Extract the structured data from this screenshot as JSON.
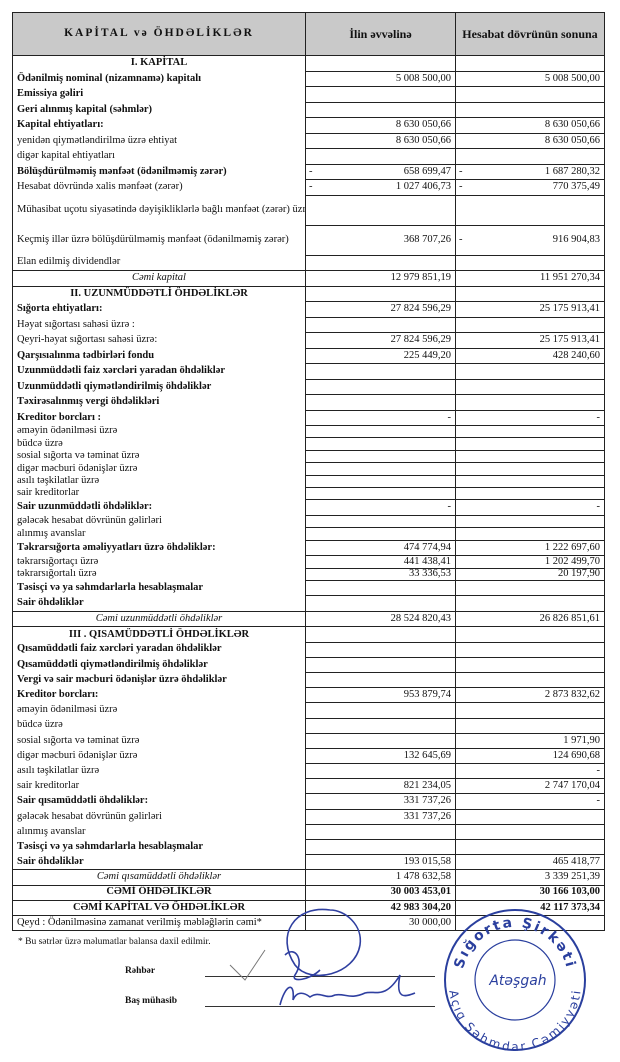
{
  "header": {
    "col_item": "KAPİTAL və ÖHDƏLİKLƏR",
    "col_start": "İlin əvvəlinə",
    "col_end": "Hesabat dövrünün sonuna"
  },
  "sections": [
    {
      "rows": [
        {
          "kind": "section",
          "label": "I. KAPİTAL",
          "v": [
            "",
            ""
          ]
        },
        {
          "kind": "main",
          "label": "Ödənilmiş nominal (nizamnamə) kapitalı",
          "v": [
            "5 008 500,00",
            "5 008 500,00"
          ]
        },
        {
          "kind": "main",
          "label": "Emissiya gəliri",
          "v": [
            "",
            ""
          ]
        },
        {
          "kind": "main",
          "label": "Geri alınmış kapital (səhmlər)",
          "v": [
            "",
            ""
          ]
        },
        {
          "kind": "main",
          "label": "Kapital ehtiyatları:",
          "v": [
            "8 630 050,66",
            "8 630 050,66"
          ]
        },
        {
          "kind": "sub",
          "label": "yenidən qiymətləndirilmə üzrə ehtiyat",
          "v": [
            "8 630 050,66",
            "8 630 050,66"
          ]
        },
        {
          "kind": "sub",
          "label": "digər kapital ehtiyatları",
          "v": [
            "",
            ""
          ]
        },
        {
          "kind": "main",
          "label": "Bölüşdürülməmiş mənfəət (ödənilməmiş zərər)",
          "v": [
            "- 658 699,47",
            "- 1 687 280,32"
          ]
        },
        {
          "kind": "sub",
          "label": "Hesabat dövründə xalis mənfəət (zərər)",
          "v": [
            "- 1 027 406,73",
            "- 770 375,49"
          ]
        },
        {
          "kind": "sub tall",
          "label": "Mühasibat uçotu siyasətində dəyişikliklərlə bağlı mənfəət (zərər) üzrə düzəlişlər",
          "v": [
            "",
            ""
          ]
        },
        {
          "kind": "sub tall",
          "label": "Keçmiş illər üzrə bölüşdürülməmiş mənfəət (ödənilməmiş zərər)",
          "v": [
            "368 707,26",
            "- 916 904,83"
          ]
        },
        {
          "kind": "sub",
          "label": "Elan edilmiş dividendlər",
          "v": [
            "",
            ""
          ]
        },
        {
          "kind": "total",
          "label": "Cəmi kapital",
          "v": [
            "12 979 851,19",
            "11 951 270,34"
          ]
        }
      ]
    },
    {
      "rows": [
        {
          "kind": "section",
          "label": "II. UZUNMÜDDƏTLİ ÖHDƏLİKLƏR",
          "v": [
            "",
            ""
          ]
        },
        {
          "kind": "main",
          "label": "Sığorta ehtiyatları:",
          "v": [
            "27 824 596,29",
            "25 175 913,41"
          ]
        },
        {
          "kind": "sub",
          "label": "Həyat sığortası sahəsi üzrə :",
          "v": [
            "",
            ""
          ]
        },
        {
          "kind": "sub",
          "label": "Qeyri-həyat sığortası sahəsi üzrə:",
          "v": [
            "27 824 596,29",
            "25 175 913,41"
          ]
        },
        {
          "kind": "main",
          "label": "Qarşısıalınma tədbirləri fondu",
          "v": [
            "225 449,20",
            "428 240,60"
          ]
        },
        {
          "kind": "main",
          "label": "Uzunmüddətli faiz xərcləri yaradan öhdəliklər",
          "v": [
            "",
            ""
          ]
        },
        {
          "kind": "main",
          "label": "Uzunmüddətli qiymətləndirilmiş öhdəliklər",
          "v": [
            "",
            ""
          ]
        },
        {
          "kind": "main",
          "label": "Təxirəsalınmış vergi öhdəlikləri",
          "v": [
            "",
            ""
          ]
        },
        {
          "kind": "main",
          "label": "Kreditor borcları :",
          "v": [
            "-",
            "-"
          ]
        },
        {
          "kind": "sub2",
          "label": "əməyin ödənilməsi üzrə",
          "v": [
            "",
            ""
          ]
        },
        {
          "kind": "sub2",
          "label": "büdcə üzrə",
          "v": [
            "",
            ""
          ]
        },
        {
          "kind": "sub2",
          "label": "sosial sığorta və təminat üzrə",
          "v": [
            "",
            ""
          ]
        },
        {
          "kind": "sub2",
          "label": "digər məcburi ödənişlər üzrə",
          "v": [
            "",
            ""
          ]
        },
        {
          "kind": "sub2",
          "label": "asılı təşkilatlar üzrə",
          "v": [
            "",
            ""
          ]
        },
        {
          "kind": "sub2",
          "label": "sair kreditorlar",
          "v": [
            "",
            ""
          ]
        },
        {
          "kind": "main",
          "label": "Sair uzunmüddətli öhdəliklər:",
          "v": [
            "-",
            "-"
          ]
        },
        {
          "kind": "sub2",
          "label": "gələcək hesabat dövrünün gəlirləri",
          "v": [
            "",
            ""
          ]
        },
        {
          "kind": "sub2",
          "label": "alınmış avanslar",
          "v": [
            "",
            ""
          ]
        },
        {
          "kind": "main",
          "label": "Təkrarsığorta əməliyyatları üzrə öhdəliklər:",
          "v": [
            "474 774,94",
            "1 222 697,60"
          ]
        },
        {
          "kind": "sub2",
          "label": "təkrarsığortaçı üzrə",
          "v": [
            "441 438,41",
            "1 202 499,70"
          ]
        },
        {
          "kind": "sub2",
          "label": "təkrarsığortalı üzrə",
          "v": [
            "33 336,53",
            "20 197,90"
          ]
        },
        {
          "kind": "main",
          "label": "Təsisçi və ya səhmdarlarla hesablaşmalar",
          "v": [
            "",
            ""
          ]
        },
        {
          "kind": "main",
          "label": "Sair öhdəliklər",
          "v": [
            "",
            ""
          ]
        },
        {
          "kind": "total",
          "label": "Cəmi uzunmüddətli öhdəliklər",
          "v": [
            "28 524 820,43",
            "26 826 851,61"
          ]
        }
      ]
    },
    {
      "rows": [
        {
          "kind": "section",
          "label": "III . QISAMÜDDƏTLİ ÖHDƏLİKLƏR",
          "v": [
            "",
            ""
          ]
        },
        {
          "kind": "main",
          "label": "Qısamüddətli faiz xərcləri yaradan öhdəliklər",
          "v": [
            "",
            ""
          ]
        },
        {
          "kind": "main",
          "label": "Qısamüddətli qiymətləndirilmiş öhdəliklər",
          "v": [
            "",
            ""
          ]
        },
        {
          "kind": "main",
          "label": "Vergi və sair məcburi ödənişlər üzrə öhdəliklər",
          "v": [
            "",
            ""
          ]
        },
        {
          "kind": "main",
          "label": "Kreditor borcları:",
          "v": [
            "953 879,74",
            "2 873 832,62"
          ]
        },
        {
          "kind": "sub2",
          "label": "əməyin ödənilməsi üzrə",
          "v": [
            "",
            ""
          ]
        },
        {
          "kind": "sub2",
          "label": "büdcə üzrə",
          "v": [
            "",
            ""
          ]
        },
        {
          "kind": "sub2",
          "label": "sosial sığorta və təminat üzrə",
          "v": [
            "",
            "1 971,90"
          ]
        },
        {
          "kind": "sub2",
          "label": "digər məcburi ödənişlər üzrə",
          "v": [
            "132 645,69",
            "124 690,68"
          ]
        },
        {
          "kind": "sub2",
          "label": "asılı təşkilatlar üzrə",
          "v": [
            "",
            "-"
          ]
        },
        {
          "kind": "sub2",
          "label": "sair kreditorlar",
          "v": [
            "821 234,05",
            "2 747 170,04"
          ]
        },
        {
          "kind": "main",
          "label": "Sair qısamüddətli öhdəliklər:",
          "v": [
            "331 737,26",
            "-"
          ]
        },
        {
          "kind": "sub2",
          "label": "gələcək hesabat dövrünün gəlirləri",
          "v": [
            "331 737,26",
            ""
          ]
        },
        {
          "kind": "sub2",
          "label": "alınmış avanslar",
          "v": [
            "",
            ""
          ]
        },
        {
          "kind": "main",
          "label": "Təsisçi və ya səhmdarlarla hesablaşmalar",
          "v": [
            "",
            ""
          ]
        },
        {
          "kind": "main",
          "label": "Sair öhdəliklər",
          "v": [
            "193 015,58",
            "465 418,77"
          ]
        },
        {
          "kind": "total",
          "label": "Cəmi qısamüddətli öhdəliklər",
          "v": [
            "1 478 632,58",
            "3 339 251,39"
          ]
        },
        {
          "kind": "grand",
          "label": "CƏMİ ÖHDƏLİKLƏR",
          "v": [
            "30 003 453,01",
            "30 166 103,00"
          ]
        },
        {
          "kind": "grand",
          "label": "CƏMİ KAPİTAL VƏ ÖHDƏLİKLƏR",
          "v": [
            "42 983 304,20",
            "42 117 373,34"
          ]
        },
        {
          "kind": "note",
          "label": "Qeyd : Ödənilməsinə zamanat verilmiş məbləğlərin cəmi*",
          "v": [
            "30 000,00",
            ""
          ]
        }
      ]
    }
  ],
  "footer": {
    "footnote": "* Bu sətrlər üzrə məlumatlar balansa daxil edilmir.",
    "director_label": "Rəhbər",
    "accountant_label": "Baş mühasib"
  },
  "stamp": {
    "top_text": "Sığorta Şirkəti",
    "center_text": "Atəşgah",
    "bottom_text": "Açıq Səhmdar Cəmiyyəti",
    "color": "#2a3f9e"
  },
  "signature_color": "#2f3fa0"
}
